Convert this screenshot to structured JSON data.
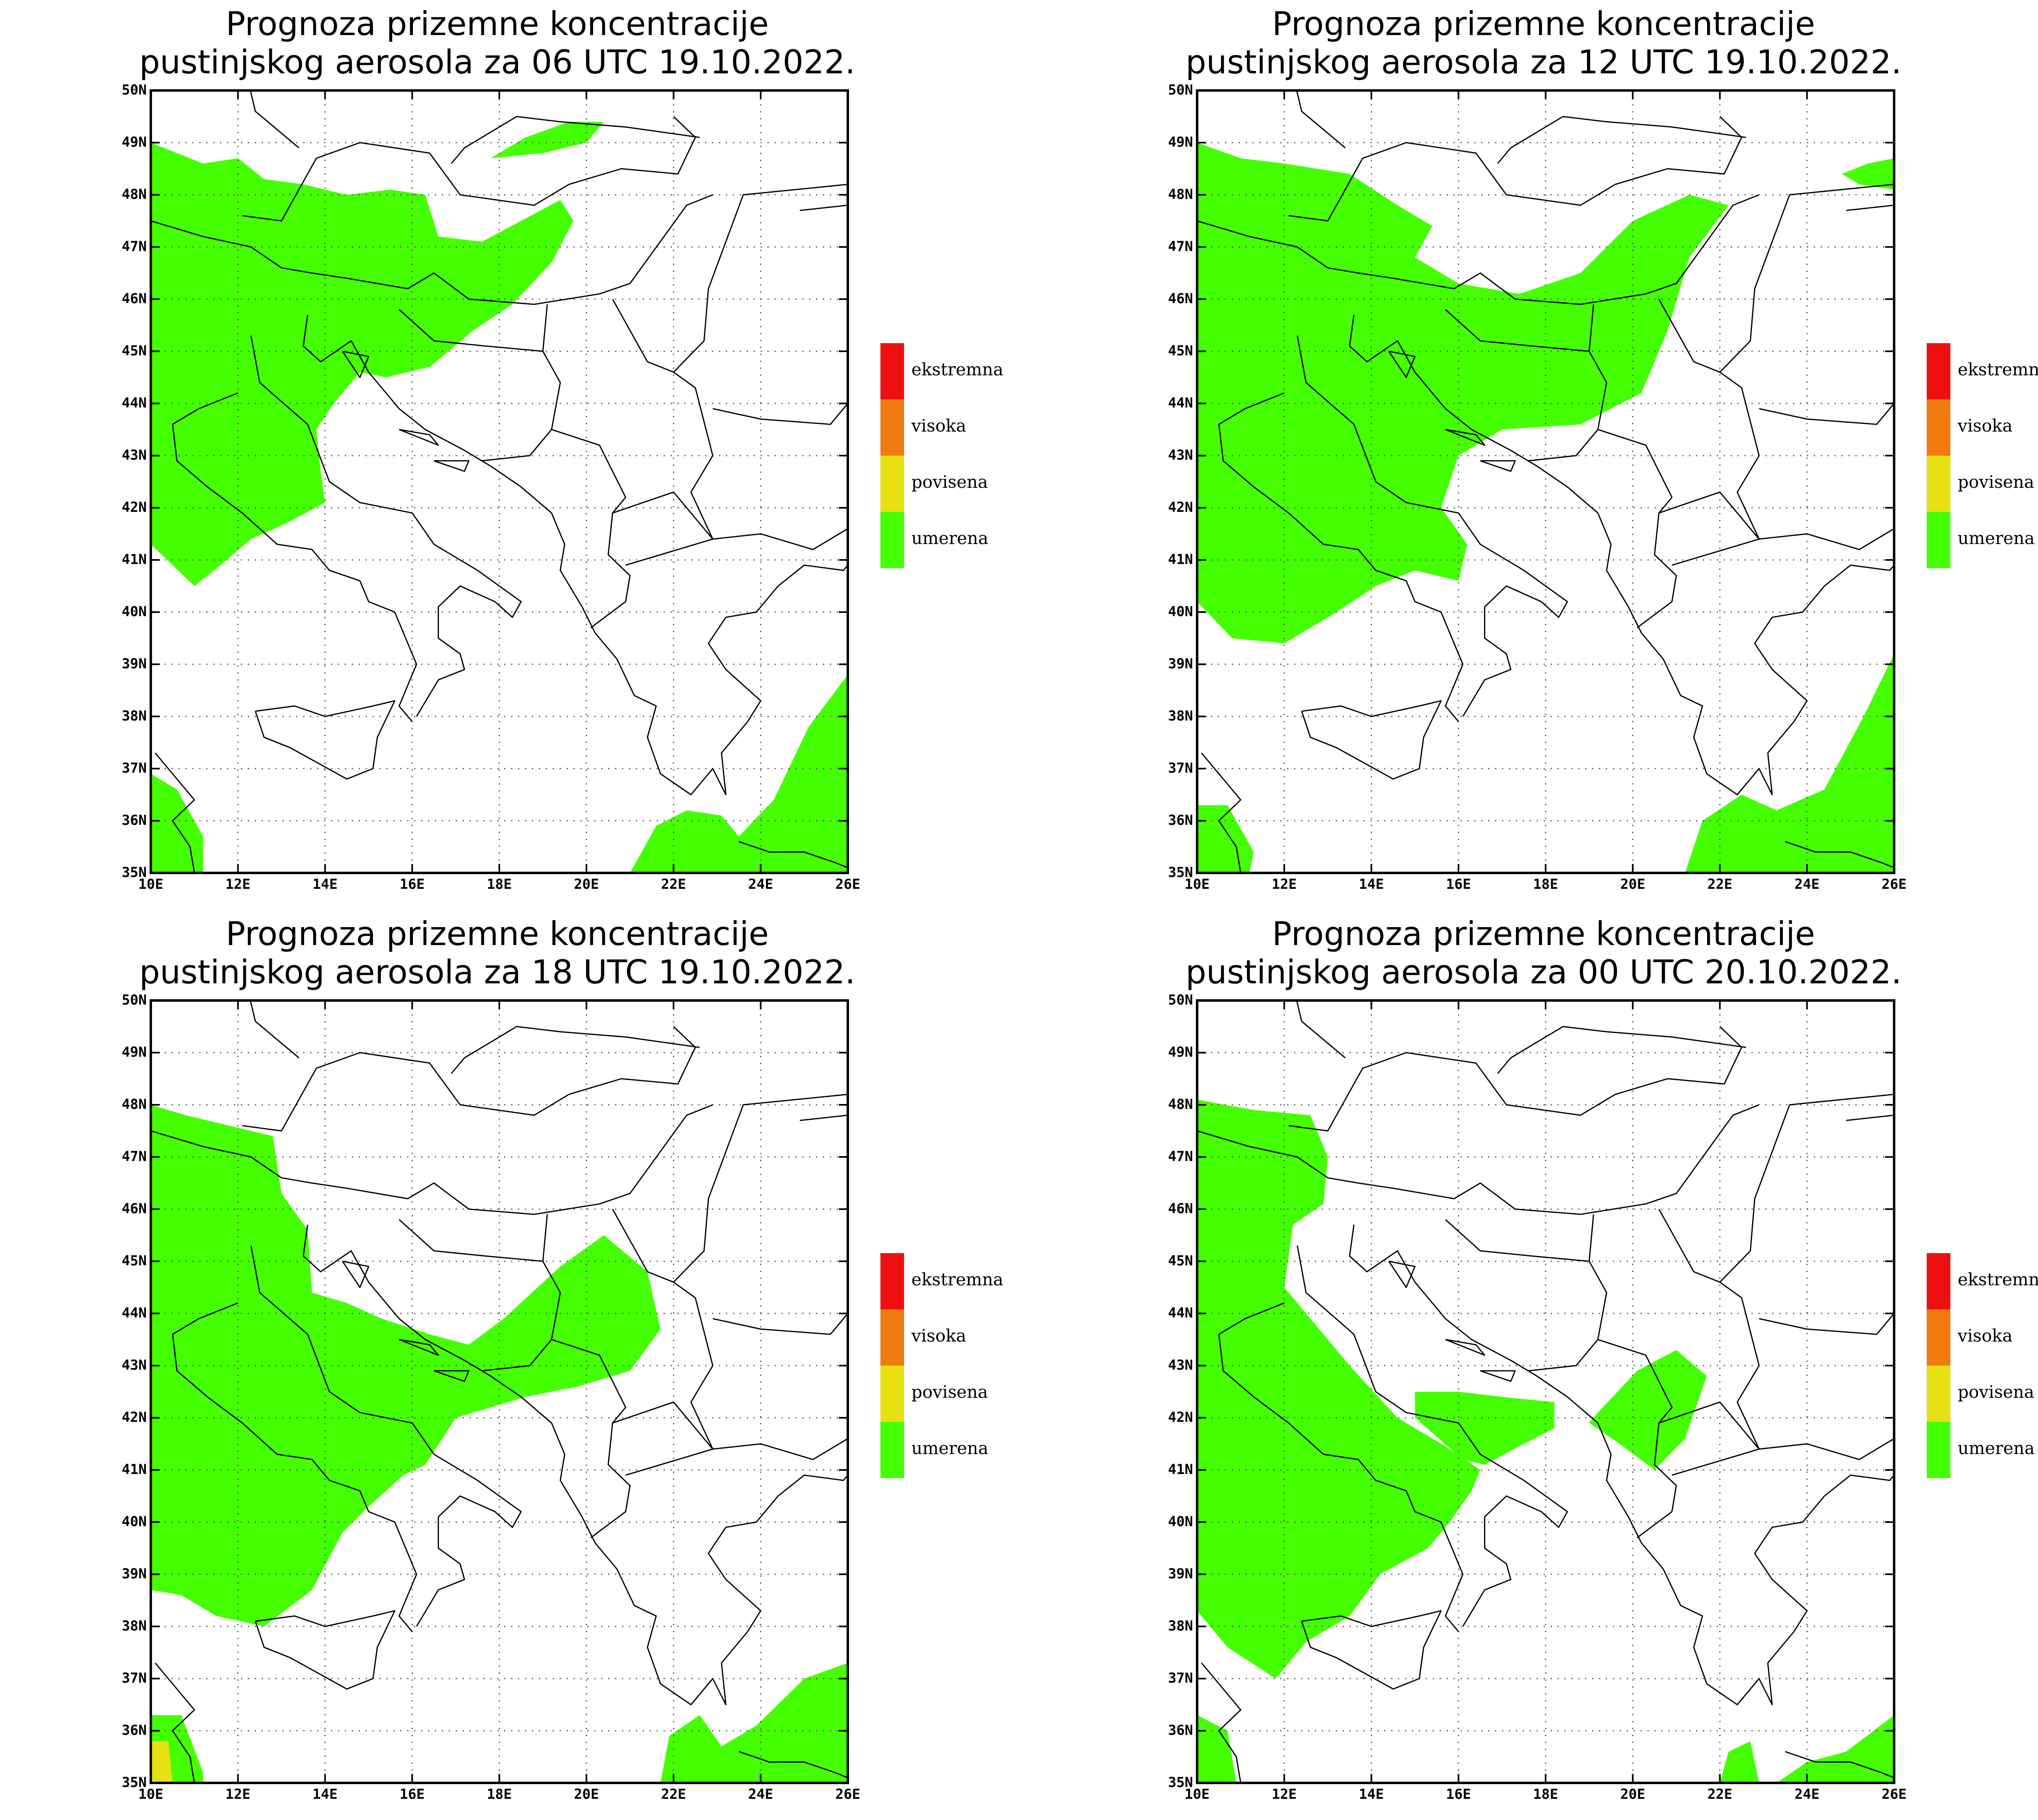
{
  "map": {
    "lon_range": [
      10,
      26
    ],
    "lat_range": [
      35,
      50
    ],
    "lon_ticks": [
      "10E",
      "12E",
      "14E",
      "16E",
      "18E",
      "20E",
      "22E",
      "24E",
      "26E"
    ],
    "lat_ticks": [
      "50N",
      "49N",
      "48N",
      "47N",
      "46N",
      "45N",
      "44N",
      "43N",
      "42N",
      "41N",
      "40N",
      "39N",
      "38N",
      "37N",
      "36N",
      "35N"
    ],
    "gridlines": "dotted"
  },
  "legend": {
    "items": [
      {
        "label": "ekstremna",
        "color": "#ee1010"
      },
      {
        "label": "visoka",
        "color": "#ee7a10"
      },
      {
        "label": "povisena",
        "color": "#e8e010"
      },
      {
        "label": "umerena",
        "color": "#44ff00"
      }
    ]
  },
  "panels": [
    {
      "title_line1": "Prognoza prizemne koncentracije",
      "title_line2": "pustinjskog aerosola za 06 UTC 19.10.2022."
    },
    {
      "title_line1": "Prognoza prizemne koncentracije",
      "title_line2": "pustinjskog aerosola za 12 UTC 19.10.2022."
    },
    {
      "title_line1": "Prognoza prizemne koncentracije",
      "title_line2": "pustinjskog aerosola za 18 UTC 19.10.2022."
    },
    {
      "title_line1": "Prognoza prizemne koncentracije",
      "title_line2": "pustinjskog aerosola za 00 UTC 20.10.2022."
    }
  ],
  "colors": {
    "moderate_fill": "#44ff00",
    "elevated_fill": "#e8e010",
    "border": "#000000"
  }
}
